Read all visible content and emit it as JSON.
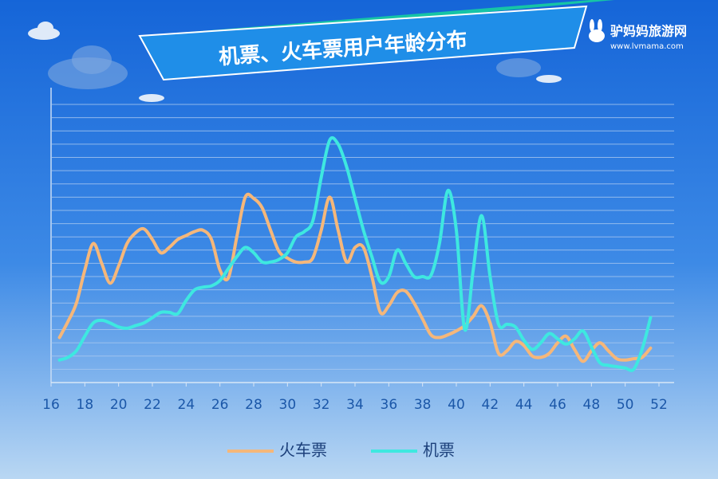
{
  "chart_data": {
    "type": "line",
    "title": "机票、火车票用户年龄分布",
    "logo": {
      "name": "驴妈妈旅游网",
      "url": "www.lvmama.com"
    },
    "x": [
      16.5,
      17,
      17.5,
      18,
      18.5,
      19,
      19.5,
      20,
      20.5,
      21,
      21.5,
      22,
      22.5,
      23,
      23.5,
      24,
      24.5,
      25,
      25.5,
      26,
      26.5,
      27,
      27.5,
      28,
      28.5,
      29,
      29.5,
      30,
      30.5,
      31,
      31.5,
      32,
      32.5,
      33,
      33.5,
      34,
      34.5,
      35,
      35.5,
      36,
      36.5,
      37,
      37.5,
      38,
      38.5,
      39,
      39.5,
      40,
      40.5,
      41,
      41.5,
      42,
      42.5,
      43,
      43.5,
      44,
      44.5,
      45,
      45.5,
      46,
      46.5,
      47,
      47.5,
      48,
      48.5,
      49,
      49.5,
      50,
      50.5,
      51,
      51.5
    ],
    "series": [
      {
        "name": "火车票",
        "color": "#f5b77a",
        "values": [
          3.4,
          4.6,
          6.0,
          8.5,
          10.5,
          9.0,
          7.5,
          8.8,
          10.5,
          11.3,
          11.6,
          10.8,
          9.8,
          10.2,
          10.8,
          11.1,
          11.4,
          11.5,
          10.8,
          8.5,
          7.9,
          11.0,
          14.0,
          13.9,
          13.2,
          11.5,
          9.9,
          9.4,
          9.1,
          9.1,
          9.4,
          11.5,
          14.0,
          11.5,
          9.1,
          10.2,
          10.2,
          8.0,
          5.3,
          5.8,
          6.8,
          6.9,
          6.0,
          4.8,
          3.6,
          3.4,
          3.6,
          3.9,
          4.3,
          5.0,
          5.8,
          4.5,
          2.2,
          2.4,
          3.1,
          2.8,
          2.0,
          1.9,
          2.2,
          3.0,
          3.5,
          2.5,
          1.6,
          2.4,
          3.0,
          2.4,
          1.8,
          1.7,
          1.8,
          1.9,
          2.6
        ]
      },
      {
        "name": "机票",
        "color": "#3ee8e0",
        "values": [
          1.7,
          1.9,
          2.4,
          3.5,
          4.5,
          4.7,
          4.5,
          4.2,
          4.1,
          4.3,
          4.5,
          4.9,
          5.3,
          5.3,
          5.2,
          6.2,
          7.0,
          7.2,
          7.3,
          7.7,
          8.6,
          9.5,
          10.2,
          9.8,
          9.1,
          9.1,
          9.3,
          9.8,
          11.0,
          11.4,
          12.2,
          15.5,
          18.3,
          18.0,
          16.3,
          13.9,
          11.5,
          9.5,
          7.6,
          8.0,
          10.0,
          9.0,
          8.0,
          8.0,
          8.1,
          10.5,
          14.5,
          11.5,
          4.0,
          8.5,
          12.6,
          8.0,
          4.4,
          4.4,
          4.2,
          3.2,
          2.5,
          3.0,
          3.7,
          3.3,
          2.9,
          3.3,
          3.9,
          2.7,
          1.5,
          1.3,
          1.2,
          1.1,
          1.0,
          2.5,
          4.9
        ]
      }
    ],
    "xlim": [
      16,
      52
    ],
    "xticks": [
      16,
      18,
      20,
      22,
      24,
      26,
      28,
      30,
      32,
      34,
      36,
      38,
      40,
      42,
      44,
      46,
      48,
      50,
      52
    ],
    "ylim": [
      0,
      21
    ],
    "yticks": [
      0,
      1,
      2,
      3,
      4,
      5,
      6,
      7,
      8,
      9,
      10,
      11,
      12,
      13,
      14,
      15,
      16,
      17,
      18,
      19,
      20,
      21
    ],
    "grid": true
  }
}
